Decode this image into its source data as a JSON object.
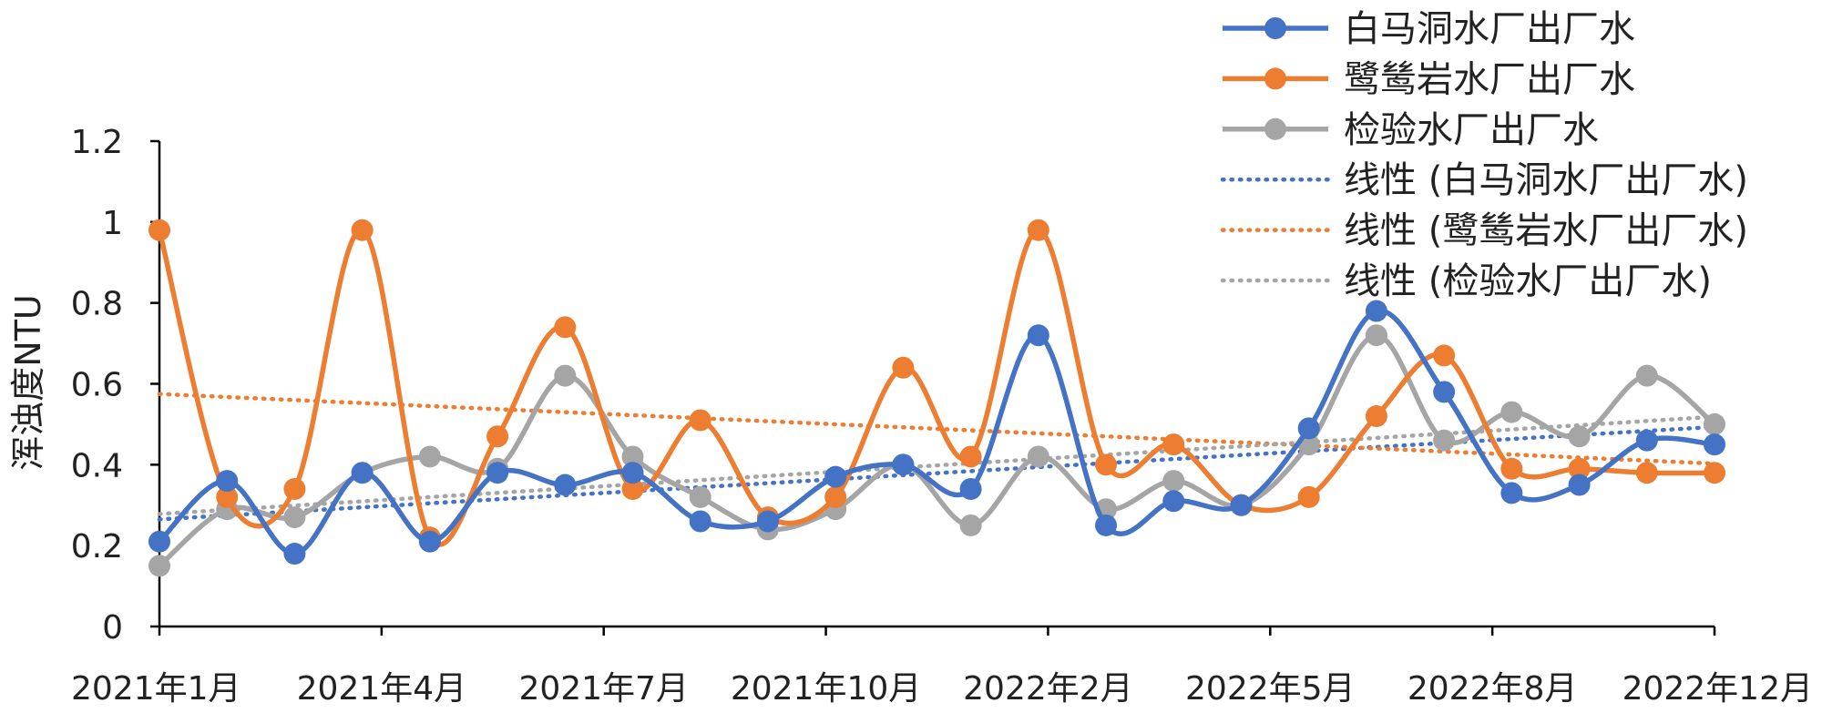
{
  "colors": {
    "blue": "#4472C4",
    "orange": "#ED7D31",
    "gray": "#A5A5A5",
    "axis": "#000000",
    "text": "#222222"
  },
  "chart_data": {
    "type": "line",
    "title": "",
    "xlabel": "",
    "ylabel": "浑浊度NTU",
    "ylim": [
      0,
      1.2
    ],
    "yticks": [
      "0",
      "0.2",
      "0.4",
      "0.6",
      "0.8",
      "1",
      "1.2"
    ],
    "x_tick_labels": [
      "2021年1月",
      "2021年4月",
      "2021年7月",
      "2021年10月",
      "2022年2月",
      "2022年5月",
      "2022年8月",
      "2022年12月"
    ],
    "n_points": 24,
    "grid": false,
    "legend_position": "top-right",
    "smoothed": true,
    "series": [
      {
        "name": "白马洞水厂出厂水",
        "color": "#4472C4",
        "values": [
          0.21,
          0.36,
          0.18,
          0.38,
          0.21,
          0.38,
          0.35,
          0.38,
          0.26,
          0.26,
          0.37,
          0.4,
          0.34,
          0.72,
          0.25,
          0.31,
          0.3,
          0.49,
          0.78,
          0.58,
          0.33,
          0.35,
          0.46,
          0.45
        ]
      },
      {
        "name": "鹭鸶岩水厂出厂水",
        "color": "#ED7D31",
        "values": [
          0.98,
          0.32,
          0.34,
          0.98,
          0.22,
          0.47,
          0.74,
          0.34,
          0.51,
          0.27,
          0.32,
          0.64,
          0.42,
          0.98,
          0.4,
          0.45,
          0.3,
          0.32,
          0.52,
          0.67,
          0.39,
          0.39,
          0.38,
          0.38
        ]
      },
      {
        "name": "检验水厂出厂水",
        "color": "#A5A5A5",
        "values": [
          0.15,
          0.29,
          0.27,
          0.38,
          0.42,
          0.39,
          0.62,
          0.42,
          0.32,
          0.24,
          0.29,
          0.4,
          0.25,
          0.42,
          0.29,
          0.36,
          0.3,
          0.45,
          0.72,
          0.46,
          0.53,
          0.47,
          0.62,
          0.5
        ]
      }
    ],
    "trendlines": [
      {
        "name": "线性 (白马洞水厂出厂水)",
        "color": "#4472C4",
        "of_series": 0
      },
      {
        "name": "线性 (鹭鸶岩水厂出厂水)",
        "color": "#ED7D31",
        "of_series": 1
      },
      {
        "name": "线性 (检验水厂出厂水)",
        "color": "#A5A5A5",
        "of_series": 2
      }
    ]
  }
}
